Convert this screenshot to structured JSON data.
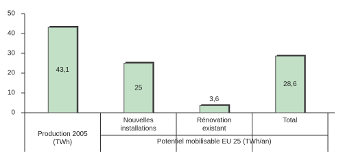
{
  "chart_data": {
    "type": "bar",
    "categories": [
      "Production 2005 (TWh)",
      "Nouvelles installations",
      "Rénovation existant",
      "Total"
    ],
    "group_label": "Potentiel mobilisable EU 25 (TWh/an)",
    "values": [
      43.1,
      25,
      3.6,
      28.6
    ],
    "value_labels": [
      "43,1",
      "25",
      "3,6",
      "28,6"
    ],
    "color": "#c2e0c6",
    "ylim": [
      0,
      50
    ],
    "yticks": [
      0,
      10,
      20,
      30,
      40,
      50
    ]
  }
}
